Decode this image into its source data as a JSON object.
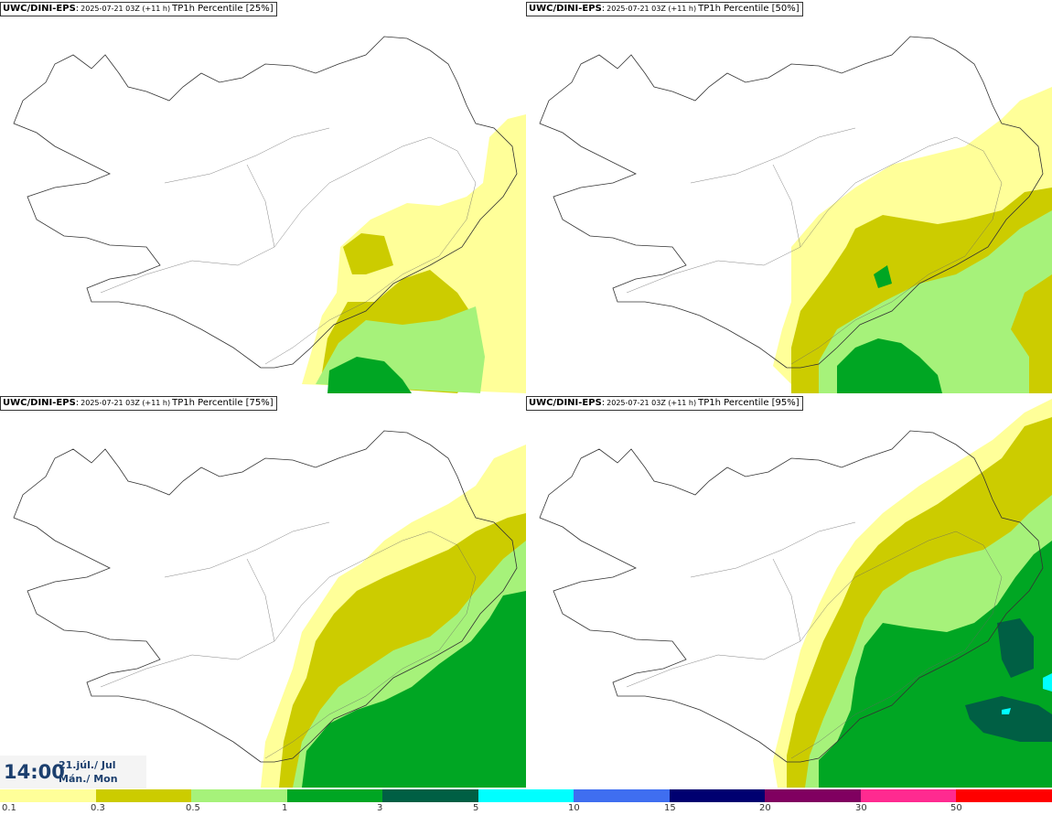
{
  "panels": [
    {
      "model": "UWC/DINI-EPS",
      "run": "2025-07-21 03Z (+11 h)",
      "field": "TP1h Percentile [25%]"
    },
    {
      "model": "UWC/DINI-EPS",
      "run": "2025-07-21 03Z (+11 h)",
      "field": "TP1h Percentile [50%]"
    },
    {
      "model": "UWC/DINI-EPS",
      "run": "2025-07-21 03Z (+11 h)",
      "field": "TP1h Percentile [75%]"
    },
    {
      "model": "UWC/DINI-EPS",
      "run": "2025-07-21 03Z (+11 h)",
      "field": "TP1h Percentile [95%]"
    }
  ],
  "time_box": {
    "time": "14:00",
    "date_line1": "21.júl./ Jul",
    "date_line2": "Mán./ Mon"
  },
  "legend": {
    "labels": [
      "0.1",
      "0.3",
      "0.5",
      "1",
      "3",
      "5",
      "10",
      "15",
      "20",
      "30",
      "50"
    ],
    "colors": [
      "#ffff99",
      "#cccc00",
      "#a6f27a",
      "#00a623",
      "#005f44",
      "#00ffff",
      "#3f6ef0",
      "#000070",
      "#800060",
      "#ff2a90",
      "#ff0000"
    ]
  }
}
